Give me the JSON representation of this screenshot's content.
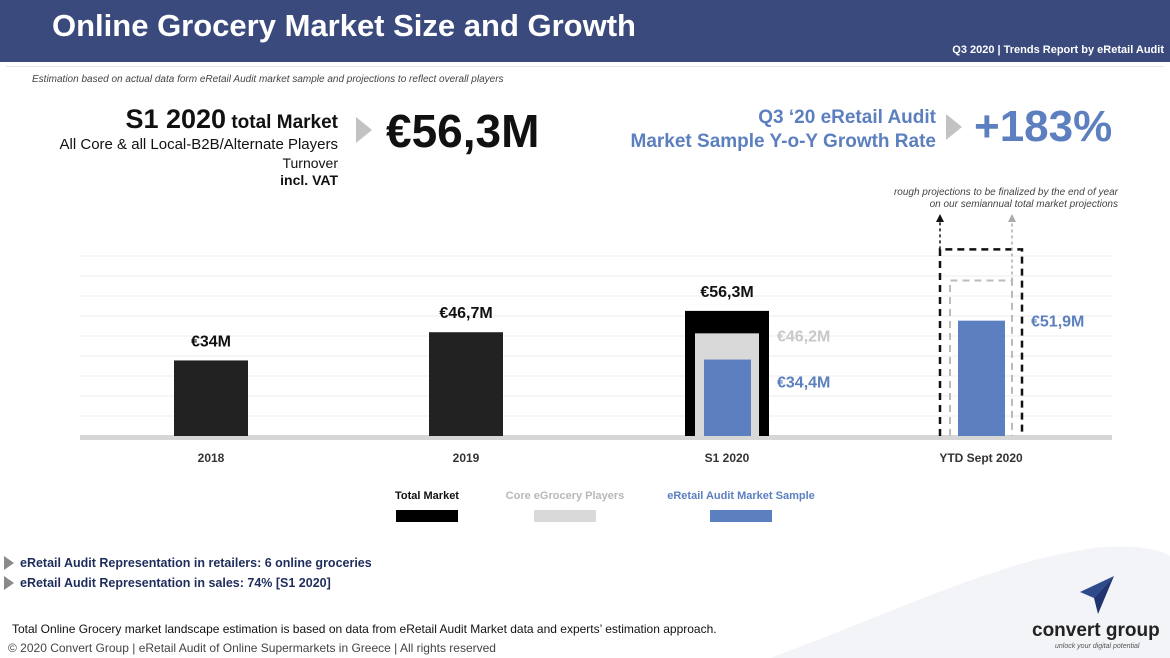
{
  "header": {
    "title": "Online Grocery Market Size and Growth",
    "subtitle": "Q3 2020 | Trends Report by eRetail Audit"
  },
  "estimation_note": "Estimation based on actual data form eRetail Audit market sample  and projections to reflect overall players",
  "kpi_market": {
    "line1_bold": "S1 2020",
    "line1_rest": "total Market",
    "line2": "All Core & all Local-B2B/Alternate Players",
    "line3": "Turnover",
    "line4": "incl. VAT",
    "value": "€56,3M"
  },
  "kpi_growth": {
    "label_line1": "Q3 ‘20 eRetail Audit",
    "label_line2": "Market Sample Y-o-Y Growth Rate",
    "value": "+183%"
  },
  "projection_note": {
    "line1": "rough projections to be finalized by the end of year",
    "line2": "on our semiannual total market projections"
  },
  "chart_data": {
    "type": "bar",
    "categories": [
      "2018",
      "2019",
      "S1 2020",
      "YTD Sept 2020"
    ],
    "series": [
      {
        "name": "Total Market",
        "values": [
          34,
          46.7,
          56.3,
          null
        ],
        "labels": [
          "€34M",
          "€46,7M",
          "€56,3M",
          ""
        ]
      },
      {
        "name": "Core eGrocery Players",
        "values": [
          null,
          null,
          46.2,
          null
        ],
        "labels": [
          "",
          "",
          "€46,2M",
          ""
        ]
      },
      {
        "name": "eRetail Audit Market Sample",
        "values": [
          null,
          null,
          34.4,
          51.9
        ],
        "labels": [
          "",
          "",
          "€34,4M",
          "€51,9M"
        ]
      }
    ],
    "projection": {
      "category": "YTD Sept 2020",
      "style": "dashed",
      "outline_series": [
        "Total Market",
        "Core eGrocery Players"
      ]
    },
    "unit": "€M",
    "ylim": [
      0,
      90
    ],
    "grid": true,
    "legend_position": "bottom",
    "colors": {
      "total": "#222222",
      "core": "#d9d9d9",
      "sample": "#5b7fbf"
    }
  },
  "legend": [
    {
      "label": "Total Market",
      "color": "#000000",
      "text_color": "#111111"
    },
    {
      "label": "Core eGrocery Players",
      "color": "#d9d9d9",
      "text_color": "#b8b8b8"
    },
    {
      "label": "eRetail Audit Market Sample",
      "color": "#5b7fbf",
      "text_color": "#5b7fbf"
    }
  ],
  "bullets": [
    "eRetail Audit Representation in retailers: 6 online groceries",
    "eRetail Audit Representation in sales: 74% [S1 2020]"
  ],
  "footnote": "Total Online Grocery market landscape estimation is based on data from eRetail Audit Market data and experts’ estimation approach.",
  "copyright": "© 2020 Convert Group | eRetail Audit of Online Supermarkets in Greece | All rights reserved",
  "logo": {
    "name": "convert group",
    "tagline": "unlock your digital potential",
    "icon": "paper-plane-icon"
  }
}
